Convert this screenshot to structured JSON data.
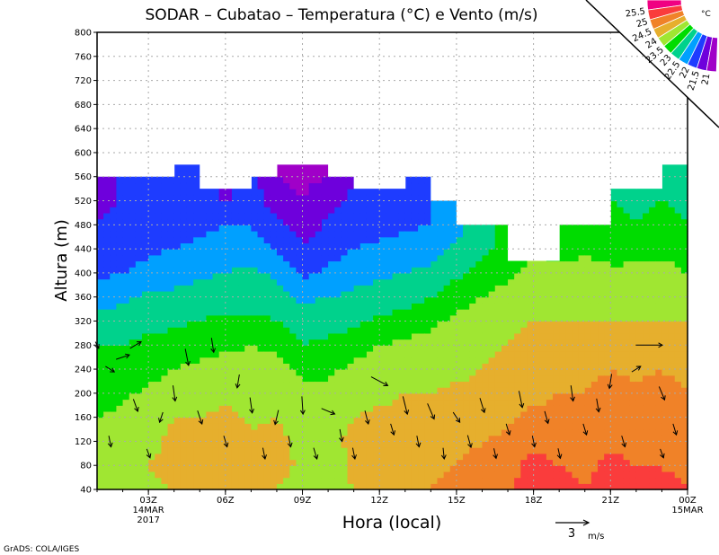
{
  "chart_data": {
    "type": "heatmap",
    "title": "SODAR – Cubatao – Temperatura (°C) e Vento (m/s)",
    "xlabel": "Hora (local)",
    "ylabel": "Altura (m)",
    "footer": "GrADS: COLA/IGES",
    "x_range_hours": [
      1,
      24
    ],
    "ylim": [
      40,
      800
    ],
    "y_ticks": [
      "40",
      "80",
      "120",
      "160",
      "200",
      "240",
      "280",
      "320",
      "360",
      "400",
      "440",
      "480",
      "520",
      "560",
      "600",
      "640",
      "680",
      "720",
      "760",
      "800"
    ],
    "x_ticks": [
      {
        "hour": 3,
        "label": "03Z",
        "sub1": "14MAR",
        "sub2": "2017"
      },
      {
        "hour": 6,
        "label": "06Z"
      },
      {
        "hour": 9,
        "label": "09Z"
      },
      {
        "hour": 12,
        "label": "12Z"
      },
      {
        "hour": 15,
        "label": "15Z"
      },
      {
        "hour": 18,
        "label": "18Z"
      },
      {
        "hour": 21,
        "label": "21Z"
      },
      {
        "hour": 24,
        "label": "00Z",
        "sub1": "15MAR"
      }
    ],
    "grid": true,
    "legend": {
      "placement": "top-right",
      "unit": "°C",
      "levels": [
        "25.5",
        "25",
        "24.5",
        "24",
        "23.5",
        "23",
        "22.5",
        "22",
        "21.5",
        "21"
      ],
      "colors": [
        "#f00082",
        "#fa3c3c",
        "#f08228",
        "#e6af2d",
        "#a0e632",
        "#00dc00",
        "#00d28c",
        "#00a0ff",
        "#1e3cff",
        "#6e00dc",
        "#a000c8"
      ],
      "thresholds": [
        25.5,
        25,
        24.5,
        24,
        23.5,
        23,
        22.5,
        22,
        21.5,
        21
      ]
    },
    "temperature_profiles": {
      "heights_m": [
        40,
        80,
        120,
        160,
        200,
        240,
        280,
        320,
        360,
        400,
        440,
        480,
        520,
        560,
        600
      ],
      "hours": [
        1,
        2,
        3,
        4,
        5,
        6,
        7,
        8,
        9,
        10,
        11,
        12,
        13,
        14,
        15,
        16,
        17,
        18,
        19,
        20,
        21,
        22,
        23,
        24
      ],
      "values": [
        [
          23.7,
          23.7,
          23.6,
          23.5,
          23.3,
          23.2,
          23.0,
          22.7,
          22.2,
          21.9,
          21.8,
          21.6,
          21.2,
          21.0
        ],
        [
          23.8,
          23.8,
          23.7,
          23.6,
          23.4,
          23.2,
          23.0,
          22.8,
          22.4,
          22.0,
          21.8,
          21.7,
          21.6,
          21.6
        ],
        [
          23.9,
          24.0,
          23.9,
          23.8,
          23.6,
          23.3,
          23.1,
          22.9,
          22.6,
          22.2,
          21.9,
          21.8,
          21.7,
          21.6
        ],
        [
          24.0,
          24.1,
          24.1,
          24.0,
          23.8,
          23.5,
          23.2,
          22.9,
          22.6,
          22.3,
          22.0,
          21.8,
          21.7,
          21.6,
          21.6
        ],
        [
          24.2,
          24.3,
          24.2,
          24.0,
          23.8,
          23.6,
          23.3,
          23.0,
          22.7,
          22.4,
          22.1,
          21.9,
          21.7
        ],
        [
          24.2,
          24.3,
          24.3,
          24.1,
          23.9,
          23.7,
          23.4,
          23.1,
          22.8,
          22.5,
          22.3,
          22.0,
          21.4
        ],
        [
          24.1,
          24.2,
          24.1,
          23.9,
          23.8,
          23.7,
          23.5,
          23.1,
          22.8,
          22.6,
          22.3,
          22.0,
          21.8,
          21.7
        ],
        [
          24.0,
          24.2,
          24.2,
          24.0,
          23.9,
          23.7,
          23.4,
          23.0,
          22.7,
          22.4,
          22.0,
          21.6,
          21.2,
          21.0
        ],
        [
          23.8,
          23.9,
          23.8,
          23.7,
          23.6,
          23.4,
          23.0,
          22.8,
          22.4,
          21.9,
          21.6,
          21.2,
          21.0,
          20.9,
          20.9
        ],
        [
          23.5,
          23.6,
          23.7,
          23.8,
          23.6,
          23.4,
          23.1,
          22.8,
          22.5,
          22.1,
          21.8,
          21.6,
          21.3,
          21.0,
          21.0
        ],
        [
          24.0,
          24.2,
          24.2,
          24.0,
          23.8,
          23.6,
          23.3,
          22.9,
          22.6,
          22.3,
          22.0,
          21.8,
          21.6,
          21.5
        ],
        [
          24.2,
          24.3,
          24.2,
          24.1,
          23.9,
          23.7,
          23.5,
          23.1,
          22.7,
          22.4,
          22.1,
          21.8,
          21.6
        ],
        [
          24.2,
          24.3,
          24.2,
          24.1,
          24.0,
          23.8,
          23.6,
          23.2,
          22.8,
          22.5,
          22.2,
          21.9,
          21.7
        ],
        [
          24.5,
          24.4,
          24.3,
          24.2,
          24.0,
          23.8,
          23.7,
          23.4,
          23.0,
          22.6,
          22.3,
          22.0
        ],
        [
          24.7,
          24.5,
          24.3,
          24.2,
          24.1,
          23.9,
          23.8,
          23.6,
          23.3,
          22.9,
          22.6,
          22.3
        ],
        [
          24.9,
          24.7,
          24.5,
          24.3,
          24.1,
          24.0,
          23.9,
          23.8,
          23.5,
          23.2,
          22.9
        ],
        [
          24.9,
          24.8,
          24.6,
          24.4,
          24.3,
          24.1,
          24.0,
          23.9,
          23.7,
          23.4,
          23.1
        ],
        [
          25.3,
          25.2,
          24.9,
          24.6,
          24.4,
          24.3,
          24.1,
          24.0,
          23.8,
          23.6
        ],
        [
          25.1,
          25.0,
          24.8,
          24.6,
          24.5,
          24.3,
          24.1,
          24.0,
          23.8,
          23.6,
          23.3
        ],
        [
          25.0,
          24.9,
          24.8,
          24.7,
          24.5,
          24.3,
          24.2,
          24.0,
          23.9,
          23.7,
          23.4
        ],
        [
          25.2,
          25.1,
          24.9,
          24.8,
          24.7,
          24.5,
          24.2,
          24.0,
          23.8,
          23.6,
          23.3,
          23.1,
          23.0
        ],
        [
          25.1,
          25.0,
          24.9,
          24.8,
          24.6,
          24.4,
          24.2,
          24.0,
          23.9,
          23.7,
          23.2,
          23.0,
          22.9
        ],
        [
          25.2,
          25.0,
          24.9,
          24.8,
          24.7,
          24.5,
          24.2,
          24.0,
          23.9,
          23.7,
          23.4,
          23.2,
          23.0,
          22.9,
          22.8
        ],
        [
          25.0,
          24.8,
          24.7,
          24.6,
          24.5,
          24.3,
          24.1,
          24.0,
          23.8,
          23.5,
          23.2,
          23.0,
          22.9,
          22.8,
          22.7
        ]
      ],
      "valid_top_m_per_interval": [
        560,
        560,
        560,
        580,
        540,
        540,
        560,
        580,
        580,
        560,
        540,
        540,
        560,
        520,
        480,
        480,
        420,
        420,
        480,
        480,
        540,
        540,
        580
      ]
    },
    "wind": {
      "reference": {
        "speed": 3,
        "label": "3",
        "unit": "m/s"
      },
      "vectors": [
        [
          1,
          280,
          0.3,
          -0.6
        ],
        [
          1.5,
          240,
          0.8,
          -0.5
        ],
        [
          2,
          260,
          1.2,
          0.4
        ],
        [
          2.5,
          280,
          1.0,
          0.6
        ],
        [
          1.5,
          120,
          0.2,
          -1.0
        ],
        [
          2.5,
          180,
          0.4,
          -1.1
        ],
        [
          3,
          100,
          0.3,
          -0.8
        ],
        [
          3.5,
          160,
          -0.3,
          -0.9
        ],
        [
          4,
          200,
          0.2,
          -1.4
        ],
        [
          4.5,
          260,
          0.3,
          -1.5
        ],
        [
          5,
          160,
          0.4,
          -1.2
        ],
        [
          5.5,
          280,
          0.2,
          -1.3
        ],
        [
          6,
          120,
          0.3,
          -1.0
        ],
        [
          6.5,
          220,
          -0.2,
          -1.2
        ],
        [
          7,
          180,
          0.2,
          -1.4
        ],
        [
          7.5,
          100,
          0.2,
          -1.0
        ],
        [
          8,
          160,
          -0.3,
          -1.3
        ],
        [
          8.5,
          120,
          0.2,
          -1.0
        ],
        [
          9,
          180,
          0.1,
          -1.6
        ],
        [
          9.5,
          100,
          0.3,
          -1.0
        ],
        [
          10,
          170,
          1.2,
          -0.5
        ],
        [
          10.5,
          130,
          0.2,
          -1.1
        ],
        [
          11,
          100,
          0.2,
          -1.0
        ],
        [
          11.5,
          160,
          0.3,
          -1.2
        ],
        [
          12,
          220,
          1.5,
          -0.8
        ],
        [
          12.5,
          140,
          0.3,
          -1.0
        ],
        [
          13,
          180,
          0.4,
          -1.6
        ],
        [
          13.5,
          120,
          0.2,
          -1.0
        ],
        [
          14,
          170,
          0.6,
          -1.4
        ],
        [
          14.5,
          100,
          0.1,
          -1.0
        ],
        [
          15,
          160,
          0.6,
          -0.9
        ],
        [
          15.5,
          120,
          0.3,
          -1.1
        ],
        [
          16,
          180,
          0.4,
          -1.3
        ],
        [
          16.5,
          100,
          0.2,
          -0.9
        ],
        [
          17,
          140,
          0.3,
          -1.0
        ],
        [
          17.5,
          190,
          0.3,
          -1.5
        ],
        [
          18,
          120,
          0.2,
          -1.0
        ],
        [
          18.5,
          160,
          0.3,
          -1.1
        ],
        [
          19,
          100,
          0.2,
          -0.9
        ],
        [
          19.5,
          200,
          0.2,
          -1.4
        ],
        [
          20,
          140,
          0.3,
          -1.0
        ],
        [
          20.5,
          180,
          0.2,
          -1.2
        ],
        [
          21,
          220,
          -0.2,
          -1.3
        ],
        [
          21.5,
          120,
          0.3,
          -1.0
        ],
        [
          22,
          240,
          0.8,
          0.5
        ],
        [
          22.5,
          280,
          2.4,
          0.0
        ],
        [
          23,
          200,
          0.5,
          -1.2
        ],
        [
          23.5,
          140,
          0.3,
          -1.0
        ],
        [
          23,
          100,
          0.3,
          -0.8
        ]
      ]
    }
  }
}
